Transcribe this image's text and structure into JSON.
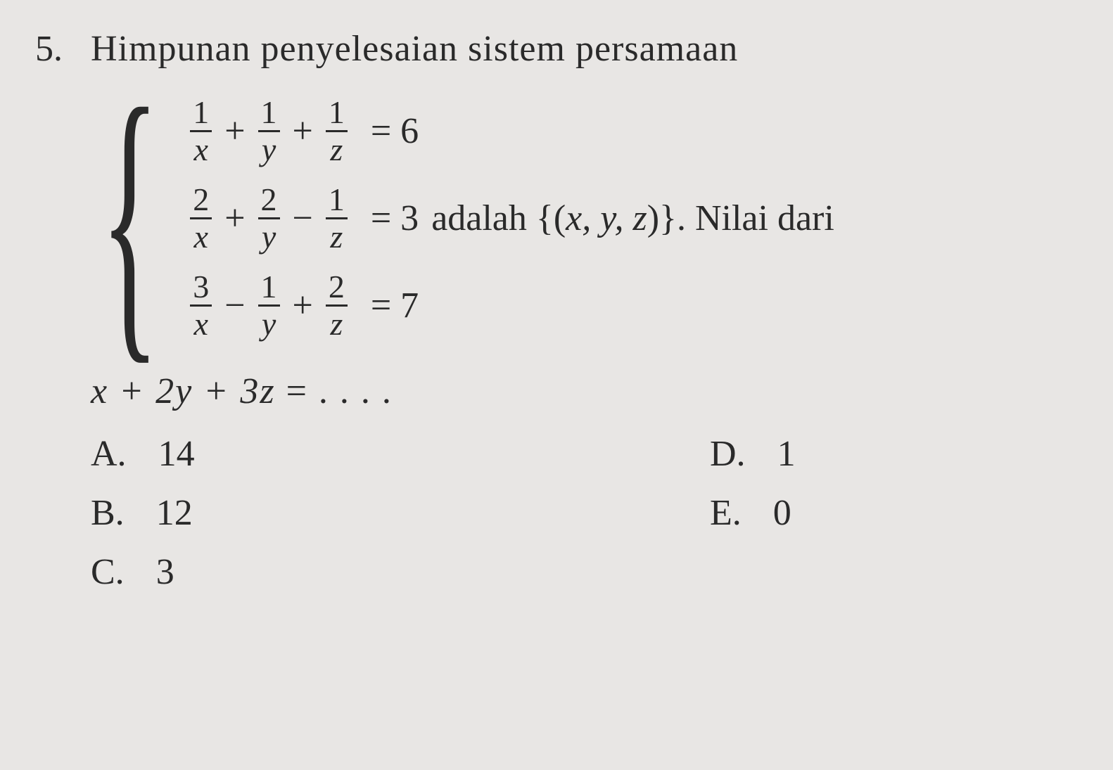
{
  "problem": {
    "number": "5.",
    "intro_text": "Himpunan penyelesaian sistem persamaan",
    "trailing_text_1": "adalah {(",
    "trailing_vars": "x, y, z",
    "trailing_text_2": ")}. Nilai dari",
    "equations": [
      {
        "terms": [
          {
            "num": "1",
            "den": "x"
          },
          {
            "op": "+"
          },
          {
            "num": "1",
            "den": "y"
          },
          {
            "op": "+"
          },
          {
            "num": "1",
            "den": "z"
          }
        ],
        "rhs": "= 6"
      },
      {
        "terms": [
          {
            "num": "2",
            "den": "x"
          },
          {
            "op": "+"
          },
          {
            "num": "2",
            "den": "y"
          },
          {
            "op": "−"
          },
          {
            "num": "1",
            "den": "z"
          }
        ],
        "rhs": "= 3"
      },
      {
        "terms": [
          {
            "num": "3",
            "den": "x"
          },
          {
            "op": "−"
          },
          {
            "num": "1",
            "den": "y"
          },
          {
            "op": "+"
          },
          {
            "num": "2",
            "den": "z"
          }
        ],
        "rhs": "= 7"
      }
    ],
    "final_expression": {
      "lhs": "x + 2y + 3z",
      "eq": " = ",
      "dots": ". . . ."
    },
    "options": [
      {
        "letter": "A.",
        "value": "14"
      },
      {
        "letter": "D.",
        "value": "1"
      },
      {
        "letter": "B.",
        "value": "12"
      },
      {
        "letter": "E.",
        "value": "0"
      },
      {
        "letter": "C.",
        "value": "3"
      }
    ]
  },
  "styling": {
    "background_color": "#e8e6e4",
    "text_color": "#2a2a2a",
    "body_fontsize": 52,
    "fraction_fontsize": 46,
    "fraction_bar_width": 3,
    "font_family": "Georgia, Times New Roman, serif"
  }
}
